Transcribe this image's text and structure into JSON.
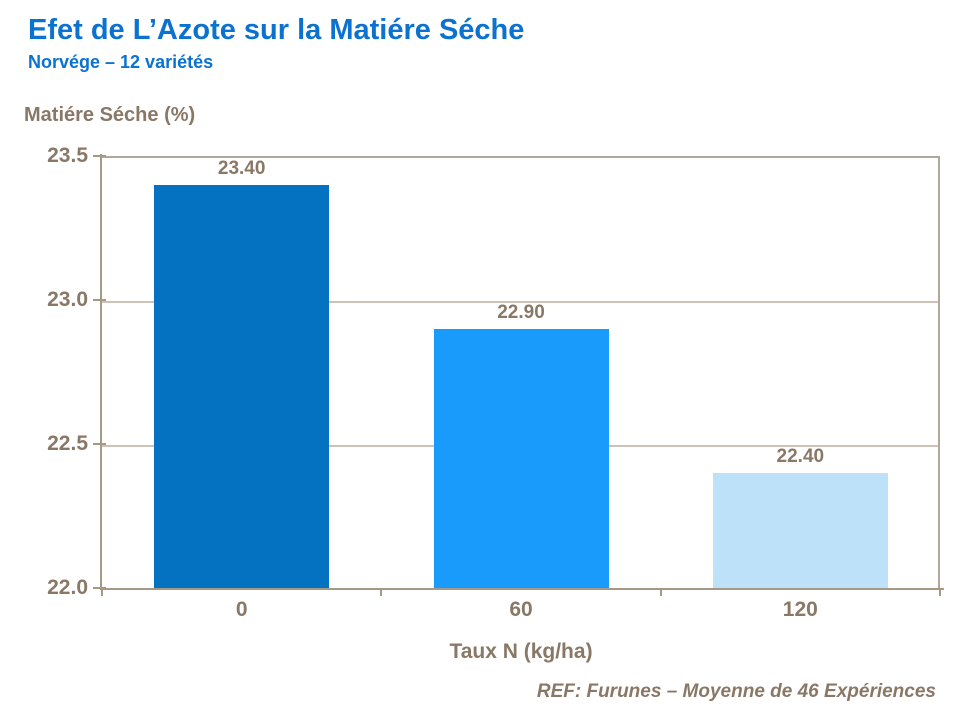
{
  "header": {
    "title": "Efet de L’Azote sur la Matiére Séche",
    "subtitle": "Norvége – 12 variétés"
  },
  "footer": {
    "ref": "REF: Furunes – Moyenne de 46 Expériences"
  },
  "chart_data": {
    "type": "bar",
    "title": "Efet de L’Azote sur la Matiére Séche",
    "subtitle": "Norvége – 12 variétés",
    "ylabel": "Matiére Séche (%)",
    "xlabel": "Taux N (kg/ha)",
    "categories": [
      "0",
      "60",
      "120"
    ],
    "values": [
      23.4,
      22.9,
      22.4
    ],
    "value_labels": [
      "23.40",
      "22.90",
      "22.40"
    ],
    "ylim": [
      22.0,
      23.5
    ],
    "yticks": [
      22.0,
      22.5,
      23.0,
      23.5
    ],
    "ytick_labels": [
      "22.0",
      "22.5",
      "23.0",
      "23.5"
    ],
    "grid": true,
    "legend": false,
    "bar_colors": [
      "#0571C1",
      "#189BFB",
      "#BDE1F8"
    ]
  },
  "colors": {
    "title_blue": "#0B72CF",
    "text_brown": "#8A7866",
    "axis_line": "#A59885",
    "plot_border": "#B2A899",
    "gridline": "#CCC3B6",
    "background": "#FFFFFF"
  }
}
